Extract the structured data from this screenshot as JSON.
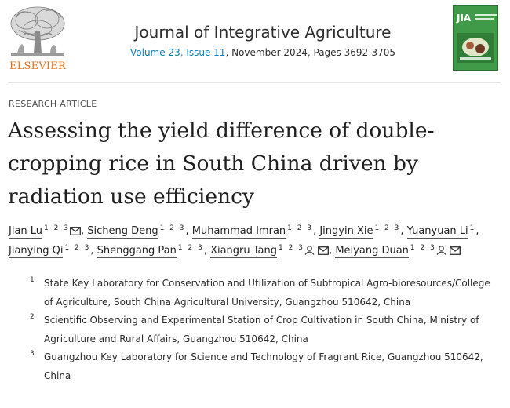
{
  "header": {
    "publisher_logo_text": "ELSEVIER",
    "journal_name": "Journal of Integrative Agriculture",
    "volume_issue_link": "Volume 23, Issue 11",
    "issue_details": ", November 2024, Pages 3692-3705",
    "cover_title": "JIA"
  },
  "article": {
    "type_label": "RESEARCH ARTICLE",
    "title": "Assessing the yield difference of double-cropping rice in South China driven by radiation use efficiency"
  },
  "authors": [
    {
      "name": "Jian Lu",
      "sup": "1 2 3",
      "email": true,
      "person": false
    },
    {
      "name": "Sicheng Deng",
      "sup": "1 2 3",
      "email": false,
      "person": false
    },
    {
      "name": "Muhammad Imran",
      "sup": "1 2 3",
      "email": false,
      "person": false
    },
    {
      "name": "Jingyin Xie",
      "sup": "1 2 3",
      "email": false,
      "person": false
    },
    {
      "name": "Yuanyuan Li",
      "sup": "1",
      "email": false,
      "person": false
    },
    {
      "name": "Jianying Qi",
      "sup": "1 2 3",
      "email": false,
      "person": false
    },
    {
      "name": "Shenggang Pan",
      "sup": "1 2 3",
      "email": false,
      "person": false
    },
    {
      "name": "Xiangru Tang",
      "sup": "1 2 3",
      "email": true,
      "person": true
    },
    {
      "name": "Meiyang Duan",
      "sup": "1 2 3",
      "email": true,
      "person": true
    }
  ],
  "affiliations": [
    {
      "num": "1",
      "text": "State Key Laboratory for Conservation and Utilization of Subtropical Agro-bioresources/College of Agriculture, South China Agricultural University, Guangzhou 510642, China"
    },
    {
      "num": "2",
      "text": "Scientific Observing and Experimental Station of Crop Cultivation in South China, Ministry of Agriculture and Rural Affairs, Guangzhou 510642, China"
    },
    {
      "num": "3",
      "text": "Guangzhou Key Laboratory for Science and Technology of Fragrant Rice, Guangzhou 510642, China"
    }
  ],
  "colors": {
    "link": "#0c7dbb",
    "elsevier_orange": "#e9711c",
    "cover_green": "#3f9b47"
  },
  "icons": {
    "email": "envelope-icon",
    "corresponding": "person-icon"
  }
}
